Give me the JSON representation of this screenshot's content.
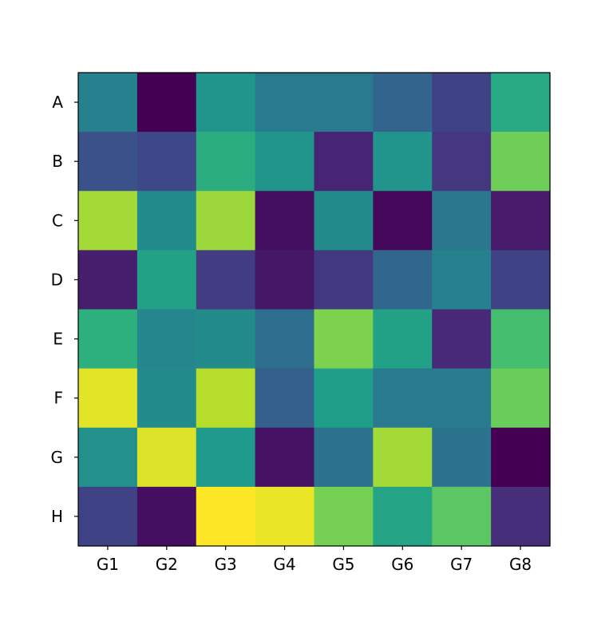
{
  "chart_data": {
    "type": "heatmap",
    "colormap": "viridis",
    "title": "",
    "xlabel": "",
    "ylabel": "",
    "x_categories": [
      "G1",
      "G2",
      "G3",
      "G4",
      "G5",
      "G6",
      "G7",
      "G8"
    ],
    "y_categories": [
      "A",
      "B",
      "C",
      "D",
      "E",
      "F",
      "G",
      "H"
    ],
    "value_range": [
      0,
      1
    ],
    "values": [
      [
        0.44,
        0.0,
        0.52,
        0.41,
        0.41,
        0.32,
        0.2,
        0.6
      ],
      [
        0.25,
        0.22,
        0.62,
        0.52,
        0.1,
        0.52,
        0.16,
        0.78
      ],
      [
        0.86,
        0.48,
        0.85,
        0.04,
        0.48,
        0.02,
        0.4,
        0.07
      ],
      [
        0.08,
        0.57,
        0.18,
        0.06,
        0.17,
        0.33,
        0.44,
        0.2
      ],
      [
        0.63,
        0.46,
        0.48,
        0.36,
        0.8,
        0.57,
        0.11,
        0.7
      ],
      [
        0.96,
        0.48,
        0.89,
        0.3,
        0.56,
        0.41,
        0.41,
        0.77
      ],
      [
        0.5,
        0.95,
        0.54,
        0.05,
        0.38,
        0.86,
        0.38,
        0.0
      ],
      [
        0.2,
        0.04,
        1.0,
        0.97,
        0.79,
        0.58,
        0.74,
        0.13
      ]
    ],
    "grid": false,
    "colorbar": false
  }
}
